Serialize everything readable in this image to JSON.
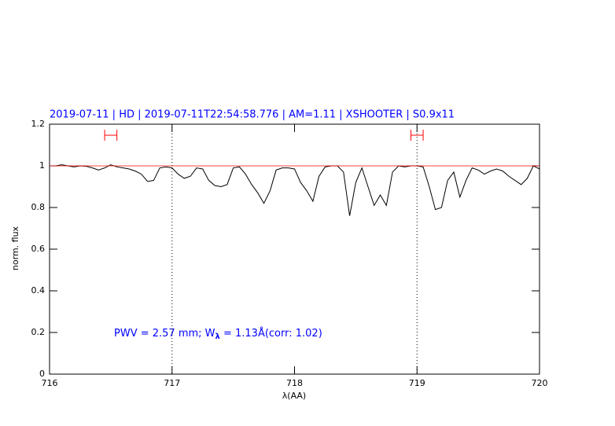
{
  "chart_data": {
    "type": "line",
    "title": "2019-07-11 | HD | 2019-07-11T22:54:58.776 | AM=1.11 | XSHOOTER | S0.9x11",
    "xlabel": "λ(AA)",
    "ylabel": "norm. flux",
    "annotation": {
      "prefix": "PWV = 2.57 mm; W",
      "subscript": "λ",
      "suffix": " = 1.13Å(corr: 1.02)"
    },
    "xlim": [
      716,
      720
    ],
    "ylim": [
      0,
      1.2
    ],
    "xticks": [
      716,
      717,
      718,
      719,
      720
    ],
    "yticks": [
      0,
      0.2,
      0.4,
      0.6,
      0.8,
      1,
      1.2
    ],
    "continuum": 1,
    "continuum_color": "#ff0000",
    "vlines": [
      717,
      719
    ],
    "windows": {
      "y": 1.147,
      "color": "#ff0000",
      "ranges": [
        [
          716.45,
          716.55
        ],
        [
          718.95,
          719.05
        ]
      ]
    },
    "x": [
      716,
      716.05,
      716.1,
      716.15,
      716.2,
      716.25,
      716.3,
      716.35,
      716.4,
      716.45,
      716.5,
      716.55,
      716.6,
      716.65,
      716.7,
      716.75,
      716.8,
      716.85,
      716.9,
      716.95,
      717,
      717.05,
      717.1,
      717.15,
      717.2,
      717.25,
      717.3,
      717.35,
      717.4,
      717.45,
      717.5,
      717.55,
      717.6,
      717.65,
      717.7,
      717.75,
      717.8,
      717.85,
      717.9,
      717.95,
      718,
      718.05,
      718.1,
      718.15,
      718.2,
      718.25,
      718.3,
      718.35,
      718.4,
      718.45,
      718.5,
      718.55,
      718.6,
      718.65,
      718.7,
      718.75,
      718.8,
      718.85,
      718.9,
      718.95,
      719,
      719.05,
      719.1,
      719.15,
      719.2,
      719.25,
      719.3,
      719.35,
      719.4,
      719.45,
      719.5,
      719.55,
      719.6,
      719.65,
      719.7,
      719.75,
      719.8,
      719.85,
      719.9,
      719.95,
      720
    ],
    "series": [
      {
        "color": "#000000",
        "values": [
          1.0,
          1.0,
          1.005,
          1.0,
          0.995,
          1.0,
          0.998,
          0.99,
          0.98,
          0.99,
          1.005,
          0.995,
          0.99,
          0.985,
          0.975,
          0.96,
          0.925,
          0.93,
          0.99,
          0.995,
          0.99,
          0.96,
          0.94,
          0.95,
          0.99,
          0.985,
          0.93,
          0.905,
          0.9,
          0.91,
          0.99,
          0.995,
          0.96,
          0.91,
          0.87,
          0.82,
          0.88,
          0.98,
          0.99,
          0.99,
          0.985,
          0.92,
          0.88,
          0.83,
          0.95,
          0.995,
          1.0,
          1.0,
          0.97,
          0.76,
          0.92,
          0.99,
          0.9,
          0.81,
          0.86,
          0.81,
          0.97,
          1.0,
          0.995,
          1.0,
          1.0,
          0.995,
          0.9,
          0.79,
          0.8,
          0.93,
          0.97,
          0.85,
          0.93,
          0.99,
          0.98,
          0.96,
          0.975,
          0.985,
          0.975,
          0.95,
          0.93,
          0.91,
          0.94,
          1.0,
          0.985
        ]
      }
    ]
  }
}
